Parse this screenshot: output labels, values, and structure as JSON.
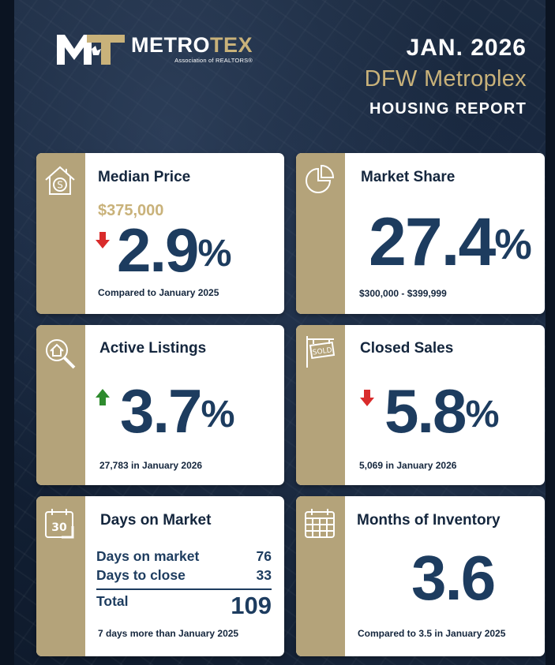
{
  "brand": {
    "logo_mark": "MT",
    "name_part1": "METRO",
    "name_part2": "TEX",
    "subtitle": "Association of REALTORS®",
    "accent_color": "#c9b27a",
    "navy": "#1d3c5f"
  },
  "header": {
    "date": "JAN. 2026",
    "region": "DFW Metroplex",
    "report": "HOUSING REPORT"
  },
  "cards": {
    "median_price": {
      "icon": "house-dollar-icon",
      "title": "Median Price",
      "price": "$375,000",
      "direction": "down",
      "value": "2.9",
      "unit": "%",
      "footnote": "Compared to January 2025"
    },
    "market_share": {
      "icon": "pie-chart-icon",
      "title": "Market Share",
      "value": "27.4",
      "unit": "%",
      "footnote": "$300,000 - $399,999"
    },
    "active_listings": {
      "icon": "house-search-icon",
      "title": "Active Listings",
      "direction": "up",
      "value": "3.7",
      "unit": "%",
      "footnote": "27,783 in January 2026"
    },
    "closed_sales": {
      "icon": "sold-sign-icon",
      "title": "Closed Sales",
      "direction": "down",
      "value": "5.8",
      "unit": "%",
      "footnote": "5,069 in January 2026"
    },
    "days_on_market": {
      "icon": "calendar-30-icon",
      "icon_number": "30",
      "title": "Days on Market",
      "rows": [
        {
          "label": "Days on market",
          "value": "76"
        },
        {
          "label": "Days to close",
          "value": "33"
        }
      ],
      "total_label": "Total",
      "total_value": "109",
      "footnote": "7 days more than January 2025"
    },
    "months_inventory": {
      "icon": "calendar-grid-icon",
      "title": "Months of Inventory",
      "value": "3.6",
      "footnote": "Compared to 3.5 in January 2025"
    }
  }
}
